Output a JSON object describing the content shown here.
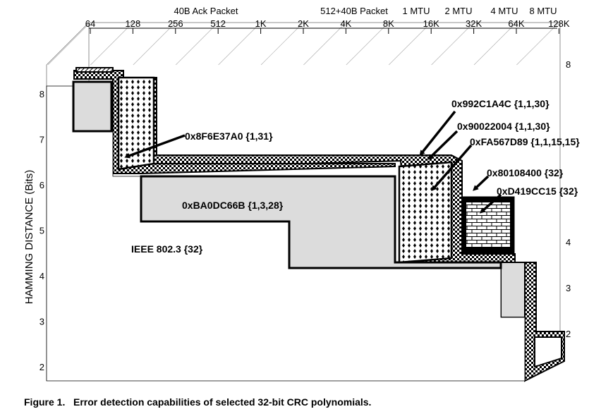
{
  "chart_data": {
    "type": "area",
    "ylabel": "HAMMING DISTANCE (Bits)",
    "x_ticks": [
      "64",
      "128",
      "256",
      "512",
      "1K",
      "2K",
      "4K",
      "8K",
      "16K",
      "32K",
      "64K",
      "128K"
    ],
    "y_ticks": [
      "2",
      "3",
      "4",
      "5",
      "6",
      "7",
      "8"
    ],
    "back_y_ticks": [
      "2",
      "3",
      "4",
      "8"
    ],
    "top_annotations": [
      "40B Ack Packet",
      "512+40B Packet",
      "1 MTU",
      "2 MTU",
      "4 MTU",
      "8 MTU"
    ],
    "ylim": [
      2,
      8
    ],
    "series": [
      {
        "name": "IEEE 802.3 {32}",
        "steps": [
          {
            "to_bits": 128,
            "hd": 6
          },
          {
            "to_bits": 2048,
            "hd": 5
          },
          {
            "to_bits": 32768,
            "hd": 4
          },
          {
            "to_bits": 131072,
            "hd": 3
          }
        ]
      },
      {
        "name": "0xBA0DC66B  {1,3,28}",
        "steps": [
          {
            "to_bits": 128,
            "hd": 6
          },
          {
            "to_bits": 2048,
            "hd": 5
          },
          {
            "to_bits": 32768,
            "hd": 4
          },
          {
            "to_bits": 131072,
            "hd": 3
          }
        ]
      },
      {
        "name": "0x8F6E37A0 {1,31}",
        "steps": [
          {
            "to_bits": 128,
            "hd": 8
          },
          {
            "to_bits": 16384,
            "hd": 6
          },
          {
            "to_bits": 131072,
            "hd": 2
          }
        ]
      },
      {
        "name": "0x992C1A4C {1,1,30}",
        "steps": [
          {
            "to_bits": 16384,
            "hd": 6
          },
          {
            "to_bits": 131072,
            "hd": 4
          }
        ]
      },
      {
        "name": "0x90022004 {1,1,30}",
        "steps": [
          {
            "to_bits": 16384,
            "hd": 6
          },
          {
            "to_bits": 131072,
            "hd": 4
          }
        ]
      },
      {
        "name": "0xFA567D89 {1,1,15,15}",
        "steps": [
          {
            "to_bits": 16384,
            "hd": 6
          },
          {
            "to_bits": 65536,
            "hd": 4
          }
        ]
      },
      {
        "name": "0x80108400 {32}",
        "steps": [
          {
            "to_bits": 32768,
            "hd": 5
          },
          {
            "to_bits": 131072,
            "hd": 4
          }
        ]
      },
      {
        "name": "0xD419CC15 {32}",
        "steps": [
          {
            "to_bits": 32768,
            "hd": 5
          },
          {
            "to_bits": 131072,
            "hd": 4
          }
        ]
      }
    ]
  },
  "caption": "Figure 1.   Error detection capabilities of selected 32-bit CRC polynomials."
}
